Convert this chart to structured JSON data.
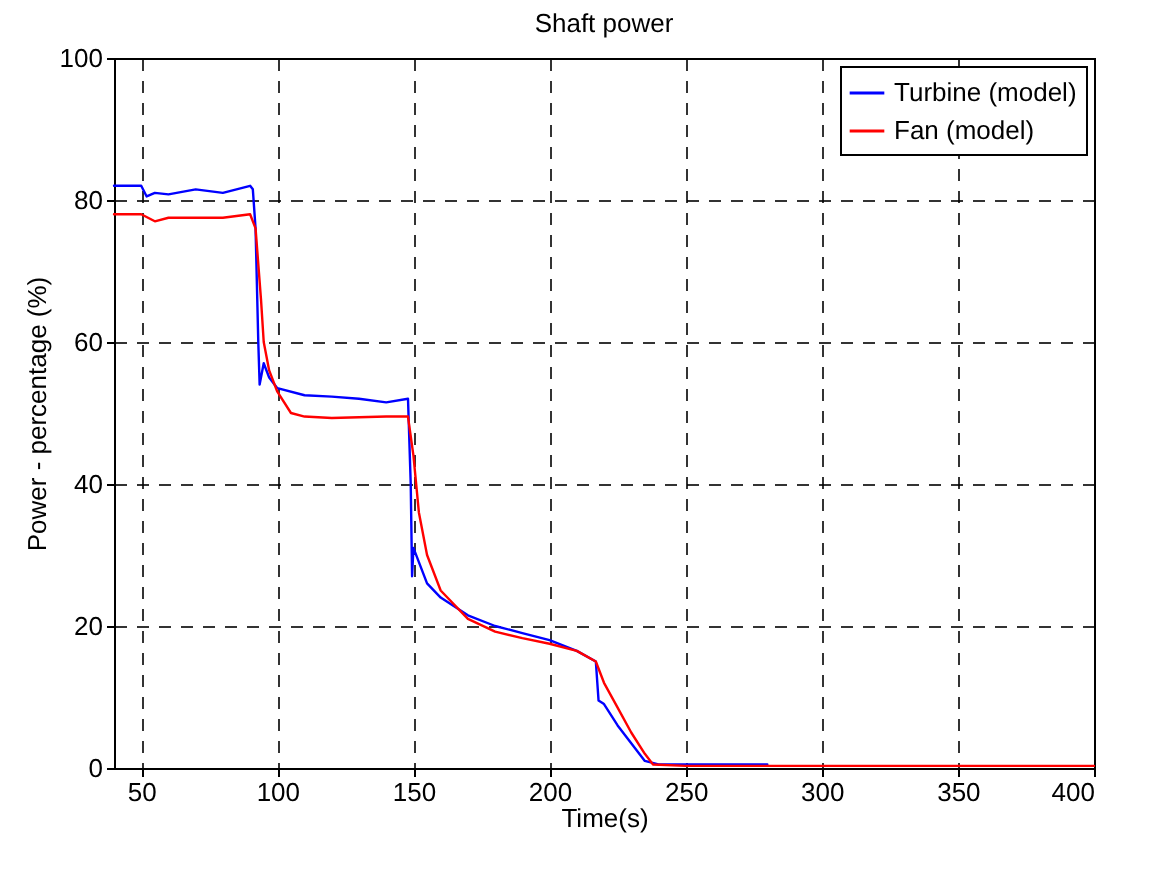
{
  "chart_data": {
    "type": "line",
    "title": "Shaft power",
    "xlabel": "Time(s)",
    "ylabel": "Power - percentage (%)",
    "xlim": [
      40,
      400
    ],
    "xticks": [
      50,
      100,
      150,
      200,
      250,
      300,
      350,
      400
    ],
    "ylim": [
      0,
      100
    ],
    "yticks": [
      0,
      20,
      40,
      60,
      80,
      100
    ],
    "grid": true,
    "legend": "top right",
    "series": [
      {
        "name": "Turbine (model)",
        "color": "#0000ff",
        "x": [
          40,
          50,
          52,
          55,
          60,
          70,
          80,
          85,
          90,
          91,
          92,
          93,
          93.5,
          95,
          97,
          100,
          110,
          120,
          130,
          140,
          148,
          149,
          149.5,
          150,
          152,
          155,
          160,
          170,
          180,
          190,
          200,
          210,
          217,
          218,
          220,
          225,
          230,
          235,
          240,
          260,
          280
        ],
        "values": [
          82,
          82,
          80.5,
          81,
          80.8,
          81.5,
          81,
          81.5,
          82,
          81.5,
          76,
          60,
          54,
          57,
          55,
          53.5,
          52.5,
          52.3,
          52,
          51.5,
          52,
          40,
          27,
          31,
          29,
          26,
          24,
          21.5,
          20,
          19,
          18,
          16.5,
          15,
          9.5,
          9,
          6,
          3.5,
          1,
          0.5,
          0.5,
          0.5
        ]
      },
      {
        "name": "Fan (model)",
        "color": "#ff0000",
        "x": [
          40,
          50,
          55,
          60,
          70,
          80,
          90,
          92,
          94,
          95,
          97,
          100,
          105,
          110,
          120,
          140,
          148,
          150,
          152,
          155,
          160,
          170,
          180,
          190,
          200,
          210,
          217,
          220,
          225,
          230,
          235,
          238,
          250,
          400
        ],
        "values": [
          78,
          78,
          77,
          77.5,
          77.5,
          77.5,
          78,
          76,
          66,
          60,
          56,
          53,
          50,
          49.5,
          49.3,
          49.5,
          49.5,
          44,
          36,
          30,
          25,
          21,
          19.2,
          18.3,
          17.5,
          16.5,
          15,
          12,
          8.5,
          5,
          2,
          0.5,
          0.3,
          0.3
        ]
      }
    ]
  }
}
